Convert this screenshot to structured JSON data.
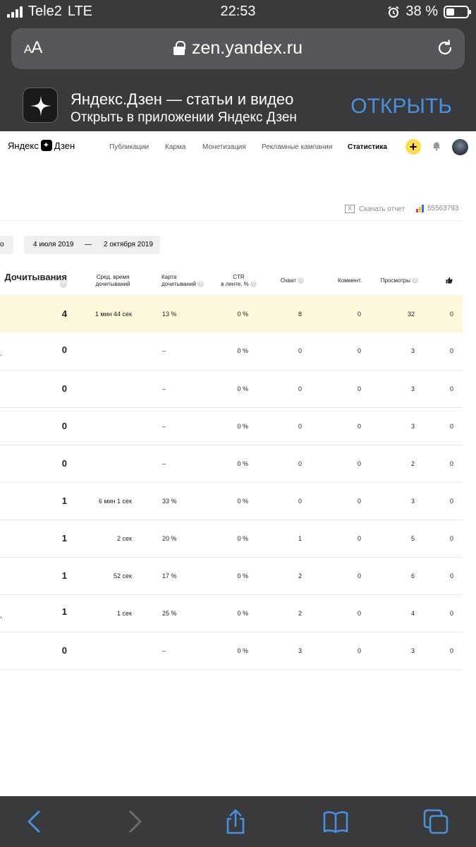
{
  "status_bar": {
    "carrier": "Tele2",
    "network": "LTE",
    "time": "22:53",
    "battery_percent": "38 %",
    "battery_level": 0.38
  },
  "browser": {
    "text_size_label": "AA",
    "url": "zen.yandex.ru"
  },
  "app_banner": {
    "title": "Яндекс.Дзен — статьи и видео",
    "subtitle": "Открыть в приложении Яндекс Дзен",
    "open_label": "ОТКРЫТЬ"
  },
  "site": {
    "logo_yandex": "Яндекс",
    "logo_zen": "Дзен",
    "nav": [
      {
        "label": "Публикации",
        "active": false
      },
      {
        "label": "Карма",
        "active": false
      },
      {
        "label": "Монетизация",
        "active": false
      },
      {
        "label": "Рекламные кампании",
        "active": false
      },
      {
        "label": "Статистика",
        "active": true
      }
    ],
    "plus_label": "+",
    "download_report": "Скачать отчет",
    "xls_label": "X",
    "counter_id": "55563793",
    "date_left_partial": "о",
    "date_from": "4 июля 2019",
    "date_sep": "—",
    "date_to": "2 октября 2019",
    "help_glyph": "?"
  },
  "table": {
    "headers": {
      "reads": "Дочитывания",
      "avg_time_1": "Сред. время",
      "avg_time_2": "дочитываний",
      "reads_map_1": "Карта",
      "reads_map_2": "дочитываний",
      "ctr_1": "CTR",
      "ctr_2": "в ленте, %",
      "reach": "Охват",
      "comments": "Коммент.",
      "views": "Просмотры"
    },
    "rows": [
      {
        "lead": "",
        "reads": "4",
        "avg_time": "1 мин 44 сек",
        "map": "13 %",
        "ctr": "0 %",
        "reach": "8",
        "comments": "0",
        "views": "32",
        "likes": "0"
      },
      {
        "lead": ".",
        "reads": "0",
        "avg_time": "",
        "map": "–",
        "ctr": "0 %",
        "reach": "0",
        "comments": "0",
        "views": "3",
        "likes": "0"
      },
      {
        "lead": "",
        "reads": "0",
        "avg_time": "",
        "map": "–",
        "ctr": "0 %",
        "reach": "0",
        "comments": "0",
        "views": "3",
        "likes": "0"
      },
      {
        "lead": "",
        "reads": "0",
        "avg_time": "",
        "map": "–",
        "ctr": "0 %",
        "reach": "0",
        "comments": "0",
        "views": "3",
        "likes": "0"
      },
      {
        "lead": "",
        "reads": "0",
        "avg_time": "",
        "map": "–",
        "ctr": "0 %",
        "reach": "0",
        "comments": "0",
        "views": "2",
        "likes": "0"
      },
      {
        "lead": "",
        "reads": "1",
        "avg_time": "6 мин 1 сек",
        "map": "33 %",
        "ctr": "0 %",
        "reach": "0",
        "comments": "0",
        "views": "3",
        "likes": "0"
      },
      {
        "lead": "",
        "reads": "1",
        "avg_time": "2 сек",
        "map": "20 %",
        "ctr": "0 %",
        "reach": "1",
        "comments": "0",
        "views": "5",
        "likes": "0"
      },
      {
        "lead": "",
        "reads": "1",
        "avg_time": "52 сек",
        "map": "17 %",
        "ctr": "0 %",
        "reach": "2",
        "comments": "0",
        "views": "6",
        "likes": "0"
      },
      {
        "lead": ",",
        "reads": "1",
        "avg_time": "1 сек",
        "map": "25 %",
        "ctr": "0 %",
        "reach": "2",
        "comments": "0",
        "views": "4",
        "likes": "0"
      },
      {
        "lead": "",
        "reads": "0",
        "avg_time": "",
        "map": "–",
        "ctr": "0 %",
        "reach": "3",
        "comments": "0",
        "views": "3",
        "likes": "0"
      }
    ]
  },
  "colors": {
    "chrome_bg": "#3a3a3c",
    "safari_blue": "#4a90e2",
    "highlight_row": "#fdf8dc",
    "plus_yellow": "#ffdb4d"
  },
  "icons": {
    "back": "chevron-left-icon",
    "forward": "chevron-right-icon",
    "share": "share-icon",
    "bookmarks": "book-icon",
    "tabs": "tabs-icon"
  }
}
